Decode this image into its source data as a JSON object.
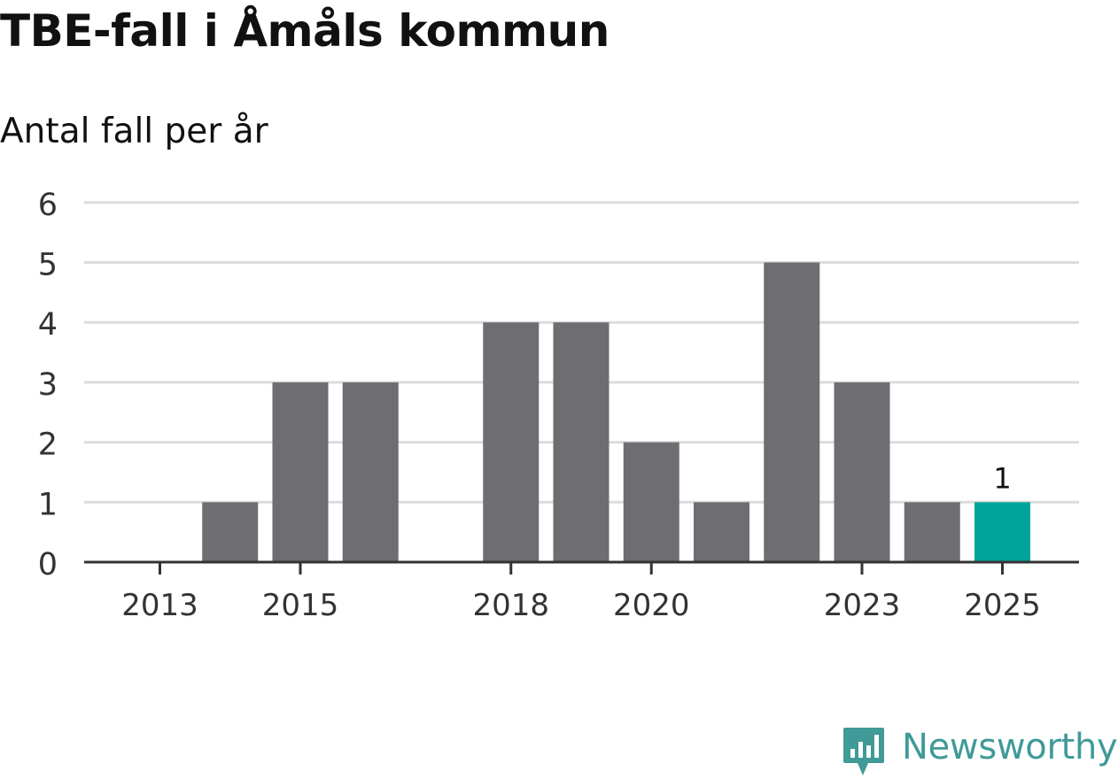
{
  "title": "TBE-fall i Åmåls kommun",
  "subtitle": "Antal fall per år",
  "brand": {
    "name": "Newsworthy",
    "color": "#3f9a98",
    "icon": "bar-chart-speech-bubble-icon"
  },
  "colors": {
    "bar": "#6e6d72",
    "highlight": "#00a49a",
    "grid": "#dcdcdc",
    "axis": "#333333"
  },
  "chart_data": {
    "type": "bar",
    "title": "",
    "xlabel": "",
    "ylabel": "",
    "categories": [
      "2013",
      "2014",
      "2015",
      "2016",
      "2017",
      "2018",
      "2019",
      "2020",
      "2021",
      "2022",
      "2023",
      "2024",
      "2025"
    ],
    "values": [
      0,
      1,
      3,
      3,
      0,
      4,
      4,
      2,
      1,
      5,
      3,
      1,
      1
    ],
    "x_tick_labels": [
      "2013",
      "2015",
      "2018",
      "2020",
      "2023",
      "2025"
    ],
    "y_ticks": [
      0,
      1,
      2,
      3,
      4,
      5,
      6
    ],
    "ylim": [
      0,
      6
    ],
    "highlight": {
      "category": "2025",
      "label": "1"
    },
    "grid": true,
    "legend": "none"
  }
}
